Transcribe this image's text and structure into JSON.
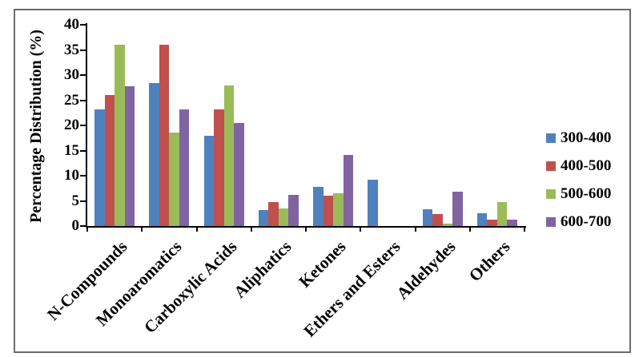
{
  "frame": {
    "border_color": "#6b6b6b",
    "background": "#ffffff"
  },
  "chart_data": {
    "type": "bar",
    "title": "",
    "xlabel": "",
    "ylabel": "Percentage Distribution (%)",
    "ylim": [
      0,
      40
    ],
    "ytick_step": 5,
    "ytick_labels": [
      "0",
      "5",
      "10",
      "15",
      "20",
      "25",
      "30",
      "35",
      "40"
    ],
    "grid": false,
    "legend_position": "right",
    "categories": [
      "N-Compounds",
      "Monoaromatics",
      "Carboxylic Acids",
      "Aliphatics",
      "Ketones",
      "Ethers and Esters",
      "Aldehydes",
      "Others"
    ],
    "series": [
      {
        "name": "300-400",
        "color": "#4F81BD",
        "values": [
          23.1,
          28.4,
          18.0,
          3.2,
          7.7,
          9.2,
          3.3,
          2.5
        ]
      },
      {
        "name": "400-500",
        "color": "#C0504D",
        "values": [
          26.0,
          36.0,
          23.2,
          4.7,
          6.0,
          0,
          2.4,
          1.2
        ]
      },
      {
        "name": "500-600",
        "color": "#9BBB59",
        "values": [
          36.0,
          18.5,
          28.0,
          3.5,
          6.5,
          0,
          0.4,
          4.8
        ]
      },
      {
        "name": "600-700",
        "color": "#8064A2",
        "values": [
          27.7,
          23.2,
          20.4,
          6.2,
          14.2,
          0,
          6.8,
          1.2
        ]
      }
    ]
  }
}
